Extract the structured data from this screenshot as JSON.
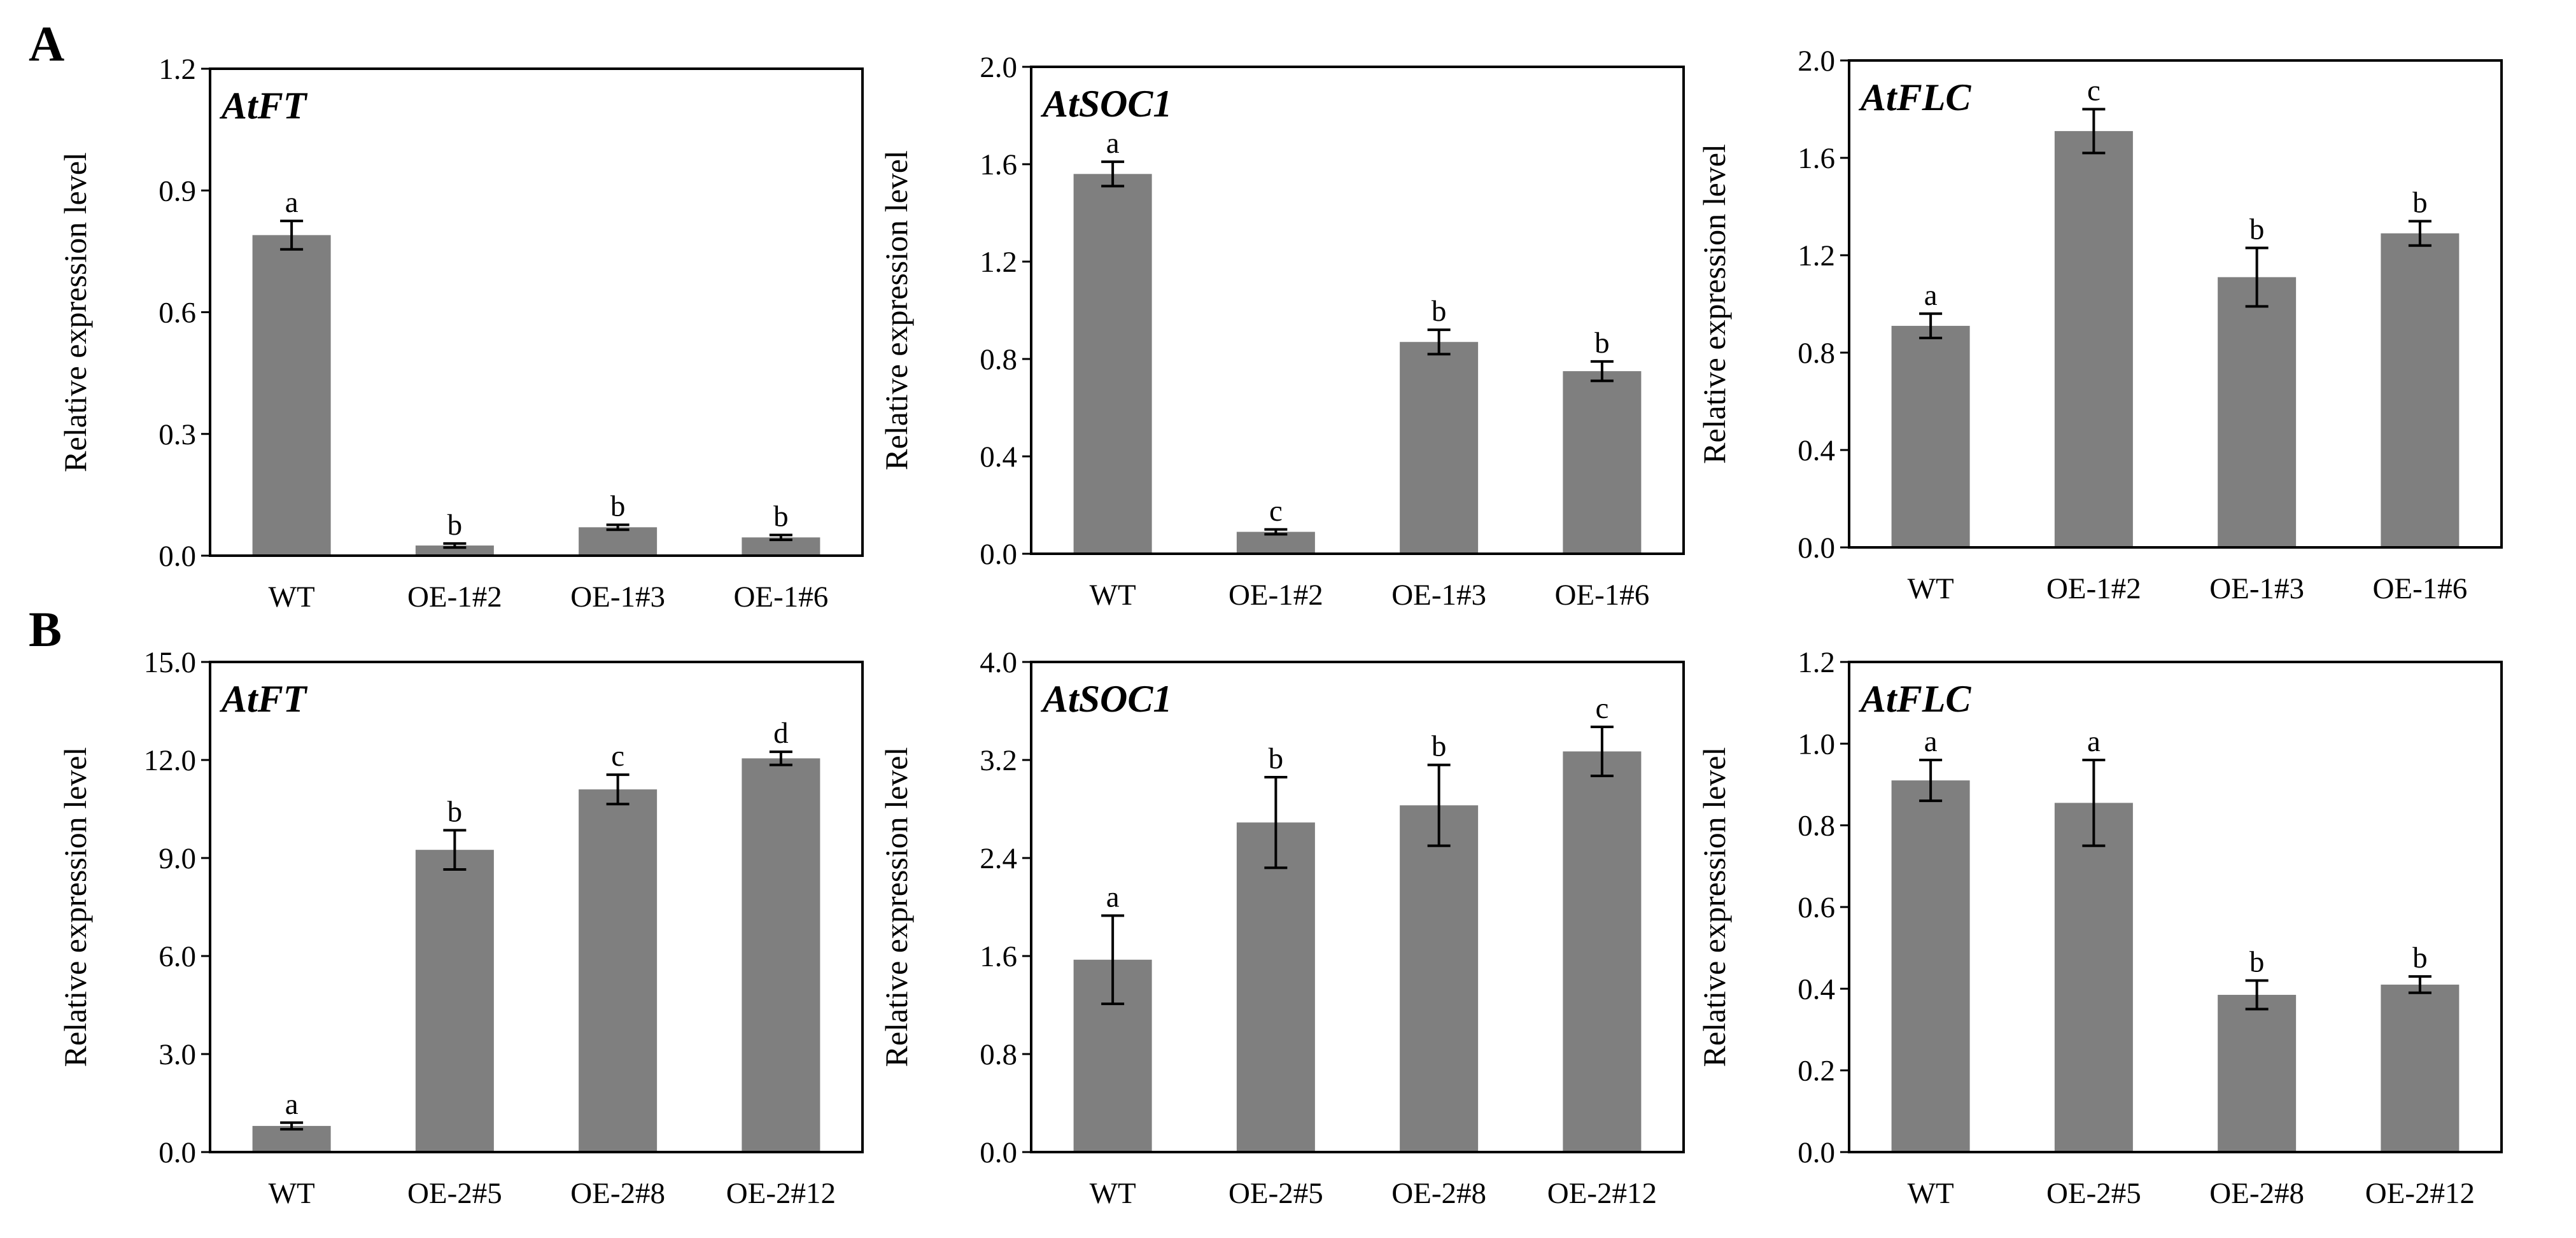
{
  "panel_labels": [
    "A",
    "B"
  ],
  "chart_data": [
    {
      "type": "bar",
      "panel": "A",
      "title": "AtFT",
      "xlabel": "",
      "ylabel": "Relative expression level",
      "categories": [
        "WT",
        "OE-1#2",
        "OE-1#3",
        "OE-1#6"
      ],
      "values": [
        0.79,
        0.025,
        0.07,
        0.045
      ],
      "errors": [
        0.035,
        0.005,
        0.006,
        0.006
      ],
      "letters": [
        "a",
        "b",
        "b",
        "b"
      ],
      "ylim": [
        0,
        1.2
      ],
      "ytick_labels": [
        "0.0",
        "0.3",
        "0.6",
        "0.9",
        "1.2"
      ],
      "grid": false,
      "bar_color": "#7f7f7f"
    },
    {
      "type": "bar",
      "panel": "A",
      "title": "AtSOC1",
      "xlabel": "",
      "ylabel": "Relative expression level",
      "categories": [
        "WT",
        "OE-1#2",
        "OE-1#3",
        "OE-1#6"
      ],
      "values": [
        1.56,
        0.09,
        0.87,
        0.75
      ],
      "errors": [
        0.05,
        0.01,
        0.05,
        0.04
      ],
      "letters": [
        "a",
        "c",
        "b",
        "b"
      ],
      "ylim": [
        0,
        2.0
      ],
      "ytick_labels": [
        "0.0",
        "0.4",
        "0.8",
        "1.2",
        "1.6",
        "2.0"
      ],
      "grid": false,
      "bar_color": "#7f7f7f"
    },
    {
      "type": "bar",
      "panel": "A",
      "title": "AtFLC",
      "xlabel": "",
      "ylabel": "Relative expression level",
      "categories": [
        "WT",
        "OE-1#2",
        "OE-1#3",
        "OE-1#6"
      ],
      "values": [
        0.91,
        1.71,
        1.11,
        1.29
      ],
      "errors": [
        0.05,
        0.09,
        0.12,
        0.05
      ],
      "letters": [
        "a",
        "c",
        "b",
        "b"
      ],
      "ylim": [
        0,
        2.0
      ],
      "ytick_labels": [
        "0.0",
        "0.4",
        "0.8",
        "1.2",
        "1.6",
        "2.0"
      ],
      "grid": false,
      "bar_color": "#7f7f7f"
    },
    {
      "type": "bar",
      "panel": "B",
      "title": "AtFT",
      "xlabel": "",
      "ylabel": "Relative expression level",
      "categories": [
        "WT",
        "OE-2#5",
        "OE-2#8",
        "OE-2#12"
      ],
      "values": [
        0.8,
        9.25,
        11.1,
        12.05
      ],
      "errors": [
        0.1,
        0.6,
        0.45,
        0.2
      ],
      "letters": [
        "a",
        "b",
        "c",
        "d"
      ],
      "ylim": [
        0,
        15
      ],
      "ytick_labels": [
        "0.0",
        "3.0",
        "6.0",
        "9.0",
        "12.0",
        "15.0"
      ],
      "grid": false,
      "bar_color": "#7f7f7f"
    },
    {
      "type": "bar",
      "panel": "B",
      "title": "AtSOC1",
      "xlabel": "",
      "ylabel": "Relative expression level",
      "categories": [
        "WT",
        "OE-2#5",
        "OE-2#8",
        "OE-2#12"
      ],
      "values": [
        1.57,
        2.69,
        2.83,
        3.27
      ],
      "errors": [
        0.36,
        0.37,
        0.33,
        0.2
      ],
      "letters": [
        "a",
        "b",
        "b",
        "c"
      ],
      "ylim": [
        0,
        4.0
      ],
      "ytick_labels": [
        "0.0",
        "0.8",
        "1.6",
        "2.4",
        "3.2",
        "4.0"
      ],
      "grid": false,
      "bar_color": "#7f7f7f"
    },
    {
      "type": "bar",
      "panel": "B",
      "title": "AtFLC",
      "xlabel": "",
      "ylabel": "Relative expression level",
      "categories": [
        "WT",
        "OE-2#5",
        "OE-2#8",
        "OE-2#12"
      ],
      "values": [
        0.91,
        0.855,
        0.385,
        0.41
      ],
      "errors": [
        0.05,
        0.105,
        0.035,
        0.02
      ],
      "letters": [
        "a",
        "a",
        "b",
        "b"
      ],
      "ylim": [
        0,
        1.2
      ],
      "ytick_labels": [
        "0.0",
        "0.2",
        "0.4",
        "0.6",
        "0.8",
        "1.0",
        "1.2"
      ],
      "grid": false,
      "bar_color": "#7f7f7f"
    }
  ]
}
